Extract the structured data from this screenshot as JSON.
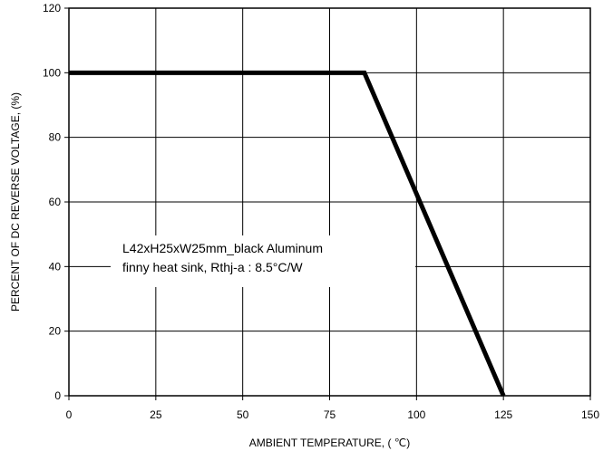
{
  "chart_data": {
    "type": "line",
    "xlabel": "AMBIENT TEMPERATURE, ( ℃)",
    "ylabel": "PERCENT OF DC REVERSE VOLTAGE, (%)",
    "xlim": [
      0,
      150
    ],
    "ylim": [
      0,
      120
    ],
    "x_ticks": [
      0,
      25,
      50,
      75,
      100,
      125,
      150
    ],
    "y_ticks": [
      0,
      20,
      40,
      60,
      80,
      100,
      120
    ],
    "x_tick_labels": [
      "0",
      "25",
      "50",
      "75",
      "100",
      "125",
      "150"
    ],
    "y_tick_labels": [
      "0",
      "20",
      "40",
      "60",
      "80",
      "100",
      "120"
    ],
    "grid": true,
    "series": [
      {
        "x": [
          0,
          85,
          125
        ],
        "y": [
          100,
          100,
          0
        ],
        "color": "#000000"
      }
    ],
    "annotation": {
      "lines": [
        "L42xH25xW25mm_black Aluminum",
        "finny heat sink, Rthj-a : 8.5°C/W"
      ]
    }
  }
}
